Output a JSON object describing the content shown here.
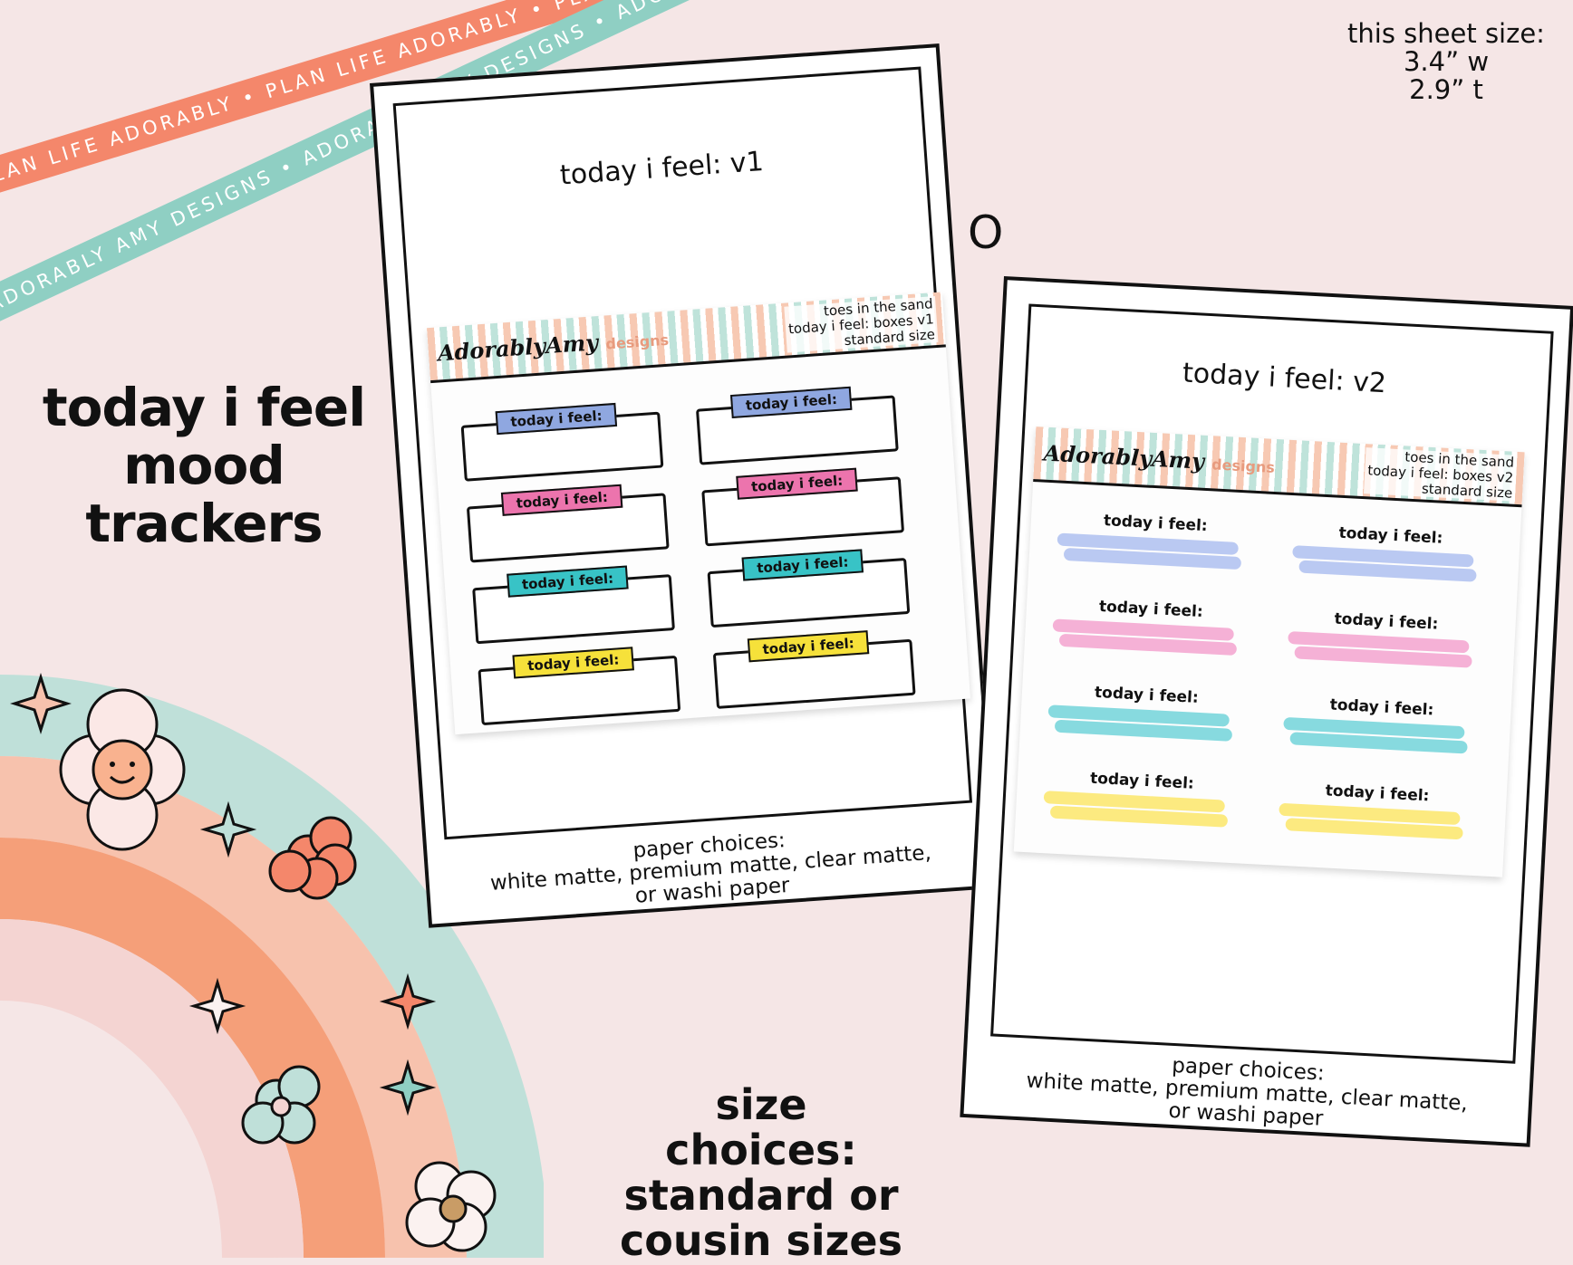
{
  "ribbons": {
    "orange_text": "PLAN LIFE ADORABLY • PLAN LIFE ADORABLY • PLAN LIFE ADORABLY •",
    "teal_text": "ADORABLY AMY DESIGNS • ADORABLY AMY DESIGNS • ADORABLY AMY DESIGNS •",
    "orange_color": "#f4876b",
    "teal_color": "#8fcfc3"
  },
  "sheet_size": {
    "label": "this sheet size:",
    "width": "3.4” w",
    "height": "2.9” t"
  },
  "headline": [
    "today i feel",
    "mood",
    "trackers"
  ],
  "size_choices": [
    "size choices:",
    "standard or",
    "cousin sizes"
  ],
  "or_mark": "O",
  "cards": [
    {
      "title": "today i feel: v1",
      "sticker_brand": "AdorablyAmy",
      "sticker_brand_suffix": "designs",
      "sticker_meta": [
        "toes in the sand",
        "today i feel: boxes v1",
        "standard size"
      ],
      "tag_label": "today i feel:",
      "tag_colors": [
        "#8fa7e0",
        "#ec74ad",
        "#38c3c6",
        "#f6e13a",
        "#8fa7e0",
        "#ec74ad",
        "#38c3c6",
        "#f6e13a"
      ],
      "paper": [
        "paper choices:",
        "white matte, premium matte, clear matte,",
        "or washi paper"
      ]
    },
    {
      "title": "today i feel: v2",
      "sticker_brand": "AdorablyAmy",
      "sticker_brand_suffix": "designs",
      "sticker_meta": [
        "toes in the sand",
        "today i feel: boxes v2",
        "standard size"
      ],
      "tag_label": "today i feel:",
      "swipe_colors": [
        "#aebff0",
        "#aebff0",
        "#f3a3cf",
        "#f3a3cf",
        "#72d4d9",
        "#72d4d9",
        "#fbe66a",
        "#fbe66a"
      ],
      "paper": [
        "paper choices:",
        "white matte, premium matte, clear matte,",
        "or washi paper"
      ]
    }
  ],
  "icons": [
    "rainbow-icon",
    "smiley-flower-icon",
    "flower-icon",
    "sparkle-icon"
  ]
}
